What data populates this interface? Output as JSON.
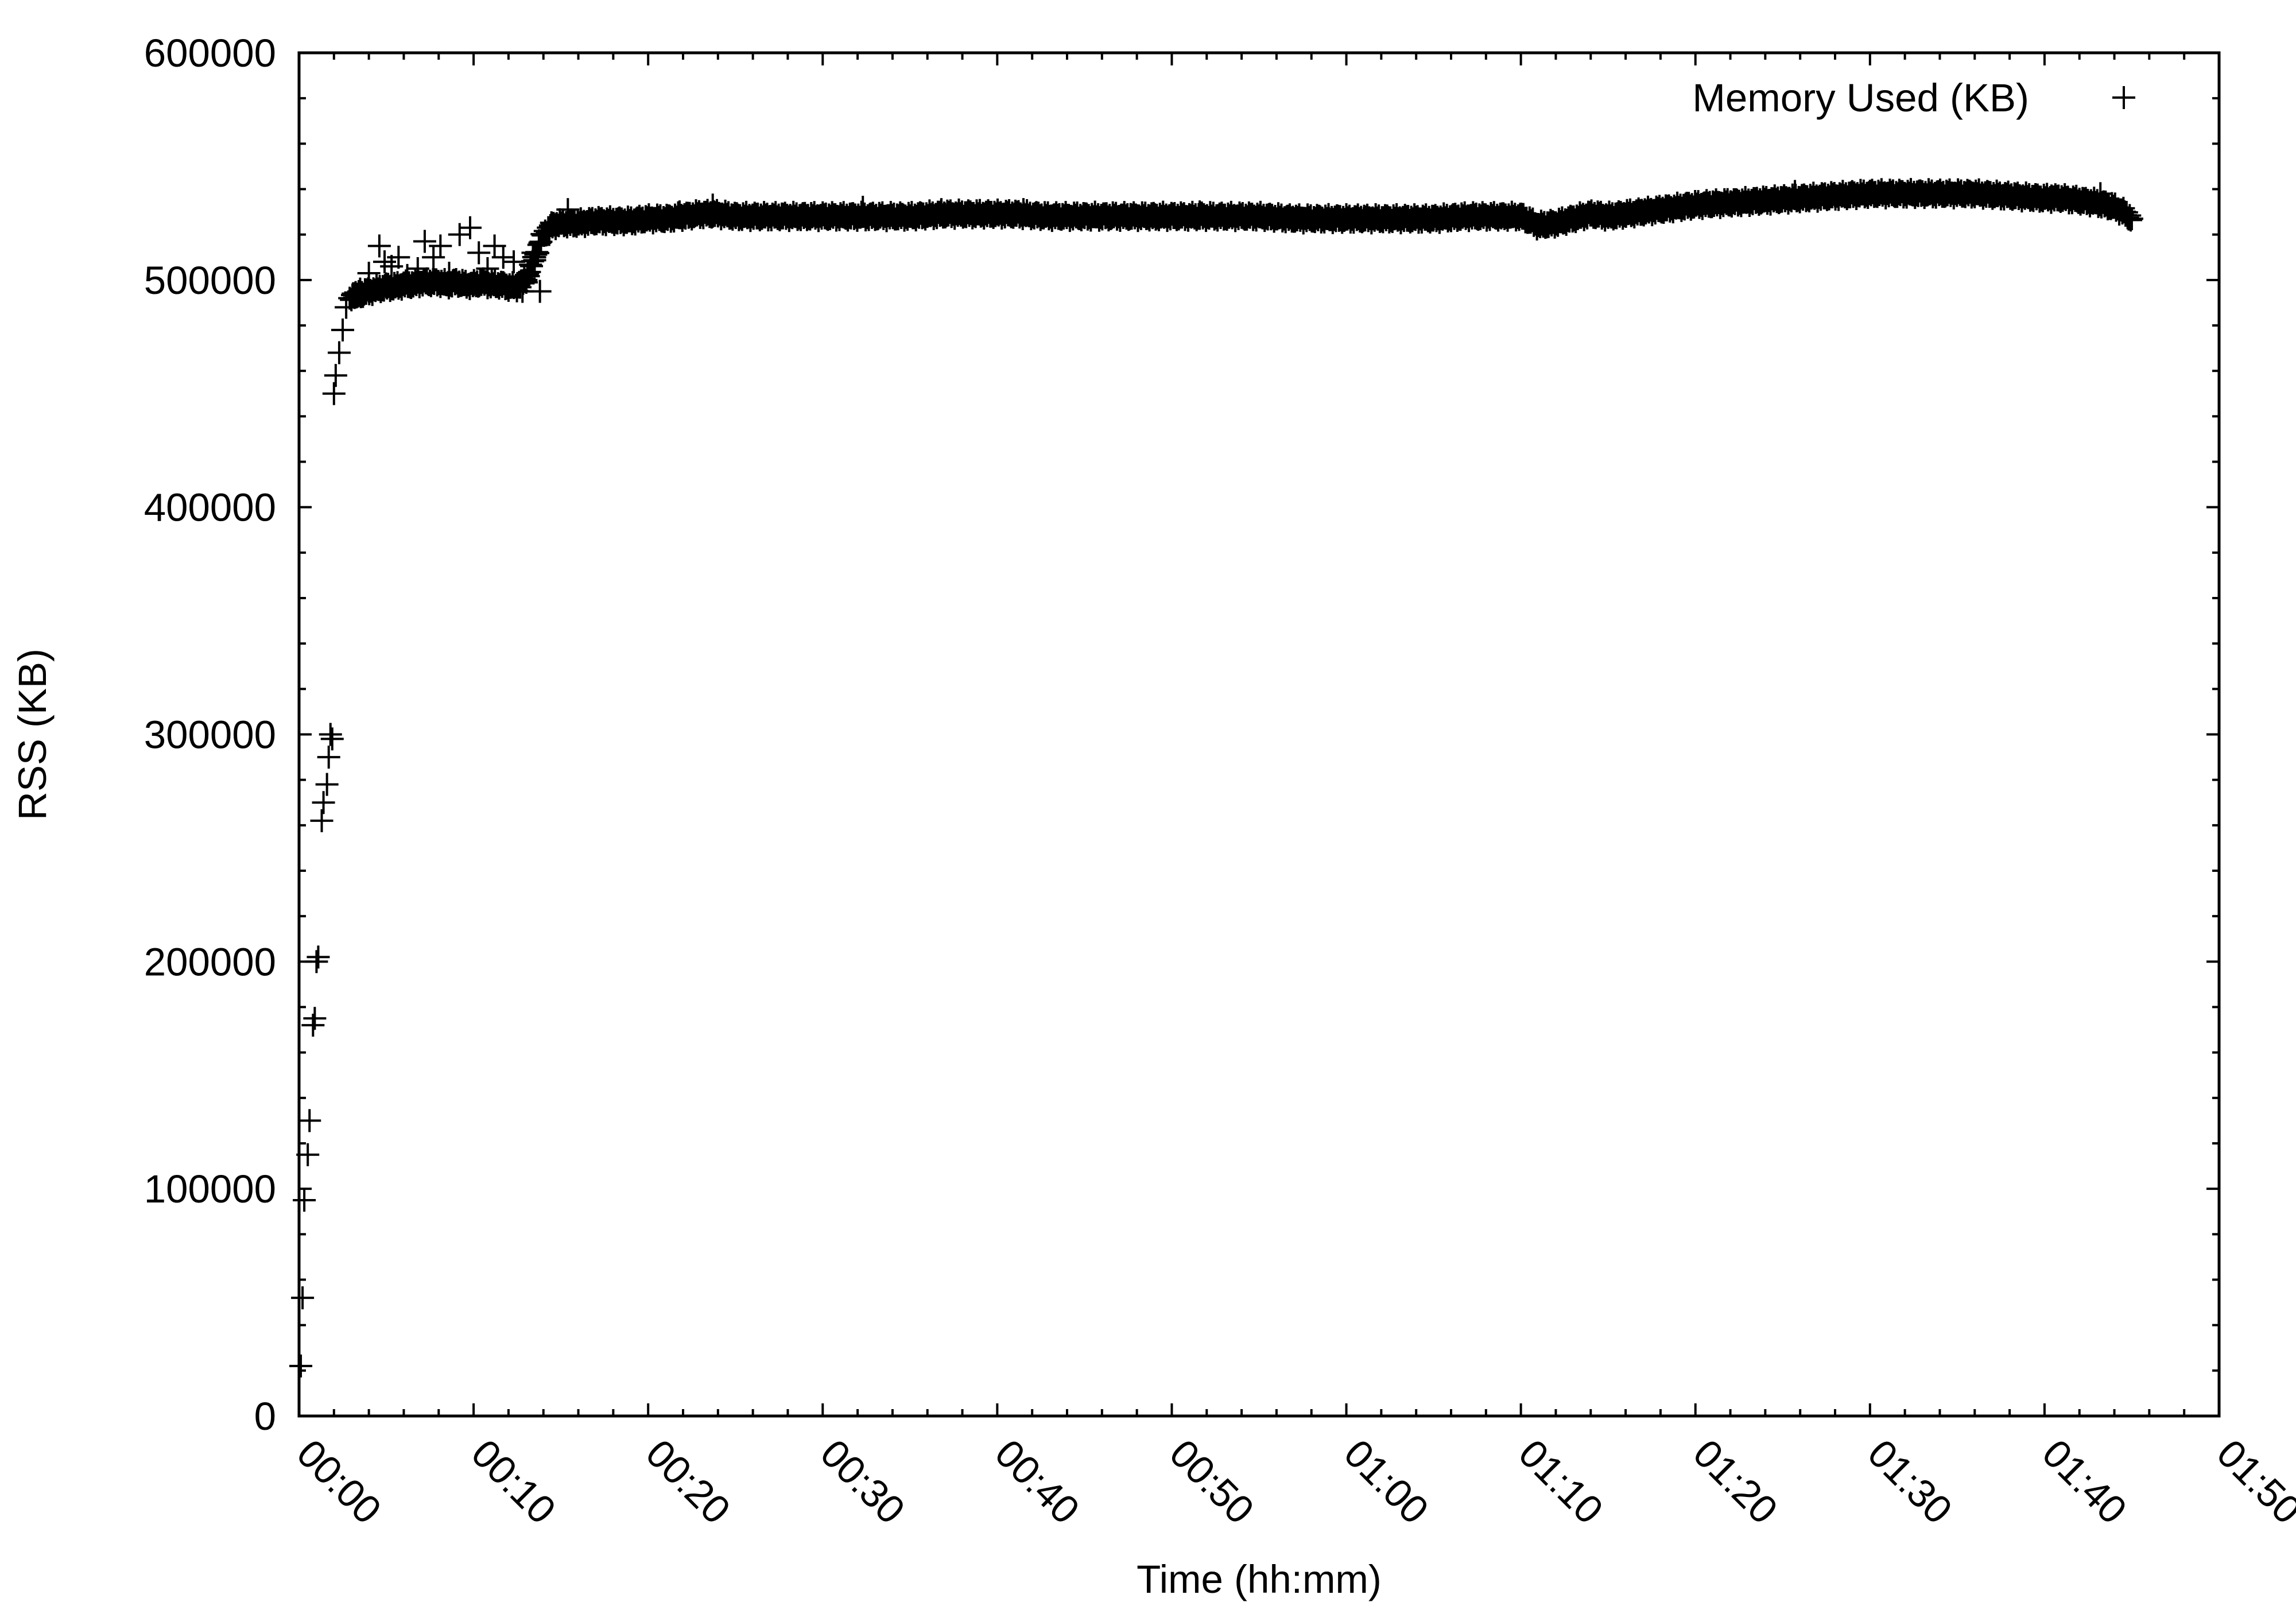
{
  "colors": {
    "marks": "#000000",
    "background": "#ffffff"
  },
  "chart_data": {
    "type": "scatter",
    "marker": "plus",
    "title": "",
    "xlabel": "Time (hh:mm)",
    "ylabel": "RSS (KB)",
    "xlim": [
      0,
      110
    ],
    "ylim": [
      0,
      600000
    ],
    "grid": false,
    "legend_position": "top-right",
    "x_unit": "minutes",
    "x_ticks": [
      0,
      10,
      20,
      30,
      40,
      50,
      60,
      70,
      80,
      90,
      100,
      110
    ],
    "x_tick_labels": [
      "00:00",
      "00:10",
      "00:20",
      "00:30",
      "00:40",
      "00:50",
      "01:00",
      "01:10",
      "01:20",
      "01:30",
      "01:40",
      "01:50"
    ],
    "y_ticks": [
      0,
      100000,
      200000,
      300000,
      400000,
      500000,
      600000
    ],
    "y_tick_labels": [
      "0",
      "100000",
      "200000",
      "300000",
      "400000",
      "500000",
      "600000"
    ],
    "series": [
      {
        "name": "Memory Used (KB)",
        "x": [
          0.1,
          0.2,
          0.3,
          0.5,
          0.6,
          0.8,
          0.9,
          1.0,
          1.1,
          1.3,
          1.4,
          1.6,
          1.7,
          1.8,
          1.9,
          2.0,
          2.1,
          2.3,
          2.5,
          2.7,
          2.9,
          3.1,
          3.3,
          3.6,
          4.0,
          4.5,
          5.0,
          5.5,
          6.0,
          6.5,
          7.0,
          7.5,
          8.0,
          8.5,
          9.0,
          9.5,
          10.0,
          10.5,
          11.0,
          11.5,
          12.0,
          12.5,
          13.0,
          13.5,
          14.0,
          14.5,
          15.0,
          16.0,
          17.0,
          18.0,
          19.0,
          20.0,
          21.0,
          22.0,
          23.0,
          24.0,
          25.0,
          27.0,
          29.0,
          31.0,
          33.0,
          35.0,
          37.0,
          39.0,
          41.0,
          43.0,
          45.0,
          47.0,
          49.0,
          51.0,
          53.0,
          55.0,
          57.0,
          59.0,
          61.0,
          63.0,
          65.0,
          67.0,
          69.0,
          70.0,
          71.0,
          72.0,
          73.0,
          74.0,
          75.0,
          76.0,
          77.0,
          78.0,
          79.0,
          80.0,
          82.0,
          84.0,
          86.0,
          88.0,
          90.0,
          92.0,
          94.0,
          96.0,
          98.0,
          100.0,
          101.0,
          102.0,
          103.0,
          104.0,
          104.5,
          105.0
        ],
        "y": [
          22000,
          52000,
          95000,
          115000,
          130000,
          172000,
          175000,
          200000,
          202000,
          262000,
          270000,
          278000,
          290000,
          300000,
          298000,
          450000,
          458000,
          468000,
          478000,
          488000,
          492000,
          494000,
          493000,
          494000,
          495000,
          496000,
          497000,
          497000,
          498000,
          498000,
          499000,
          499000,
          499000,
          498000,
          499000,
          498000,
          498000,
          499000,
          498000,
          498000,
          497000,
          497000,
          500000,
          510000,
          520000,
          524000,
          525000,
          525000,
          526000,
          526000,
          526000,
          527000,
          527000,
          528000,
          529000,
          529000,
          528000,
          528000,
          528000,
          528000,
          528000,
          528000,
          529000,
          529000,
          529000,
          528000,
          528000,
          528000,
          528000,
          528000,
          528000,
          528000,
          527000,
          527000,
          527000,
          527000,
          527000,
          528000,
          528000,
          528000,
          524000,
          525000,
          527000,
          529000,
          528000,
          529000,
          530000,
          531000,
          532000,
          533000,
          534000,
          535000,
          536000,
          537000,
          538000,
          538000,
          538000,
          538000,
          537000,
          536000,
          536000,
          535000,
          534000,
          532000,
          530000,
          527000
        ]
      },
      {
        "name": "",
        "x": [
          3.5,
          4.0,
          4.6,
          4.9,
          5.3,
          5.7,
          6.2,
          6.8,
          7.2,
          7.7,
          8.1,
          8.6,
          9.2,
          9.8,
          10.3,
          10.8,
          11.2,
          11.7,
          12.3,
          12.8,
          13.1,
          13.4,
          13.8,
          15.4,
          21.8,
          23.7,
          32.3,
          36.8,
          41.5,
          51.6,
          85.7,
          100.4,
          103.2
        ],
        "y": [
          496000,
          503000,
          515000,
          508000,
          506000,
          510000,
          502000,
          505000,
          517000,
          510000,
          515000,
          503000,
          520000,
          523000,
          512000,
          505000,
          515000,
          510000,
          508000,
          495000,
          503000,
          512000,
          495000,
          531000,
          530000,
          533000,
          532000,
          531000,
          531000,
          530000,
          539000,
          537000,
          538000
        ]
      }
    ]
  }
}
